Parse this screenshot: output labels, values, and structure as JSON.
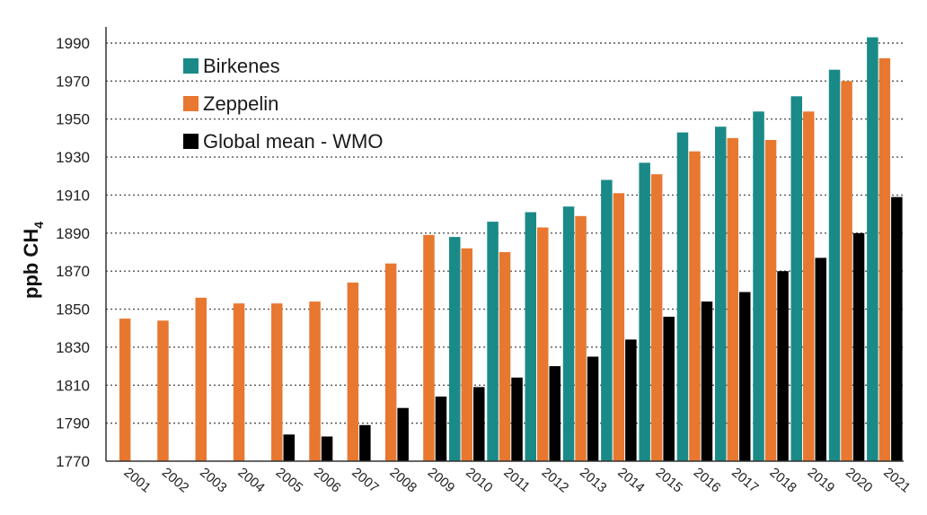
{
  "chart_data": {
    "type": "bar",
    "title": "",
    "xlabel": "",
    "ylabel": "ppb CH",
    "ylabel_subscript": "4",
    "ylim": [
      1770,
      2000
    ],
    "yticks": [
      1770,
      1790,
      1810,
      1830,
      1850,
      1870,
      1890,
      1910,
      1930,
      1950,
      1970,
      1990
    ],
    "grid": "horizontal-dotted",
    "legend_position": "top-left",
    "categories": [
      "2001",
      "2002",
      "2003",
      "2004",
      "2005",
      "2006",
      "2007",
      "2008",
      "2009",
      "2010",
      "2011",
      "2012",
      "2013",
      "2014",
      "2015",
      "2016",
      "2017",
      "2018",
      "2019",
      "2020",
      "2021"
    ],
    "series": [
      {
        "name": "Birkenes",
        "color": "#1a8a88",
        "values": [
          null,
          null,
          null,
          null,
          null,
          null,
          null,
          null,
          null,
          1888,
          1896,
          1901,
          1904,
          1918,
          1927,
          1943,
          1946,
          1954,
          1962,
          1976,
          1993
        ]
      },
      {
        "name": "Zeppelin",
        "color": "#e87830",
        "values": [
          1845,
          1844,
          1856,
          1853,
          1853,
          1854,
          1864,
          1874,
          1889,
          1882,
          1880,
          1893,
          1899,
          1911,
          1921,
          1933,
          1940,
          1939,
          1954,
          1970,
          1982
        ]
      },
      {
        "name": "Global mean - WMO",
        "color": "#000000",
        "values": [
          null,
          null,
          null,
          null,
          1784,
          1783,
          1789,
          1798,
          1804,
          1809,
          1814,
          1820,
          1825,
          1834,
          1846,
          1854,
          1859,
          1870,
          1877,
          1890,
          1909
        ]
      }
    ]
  }
}
